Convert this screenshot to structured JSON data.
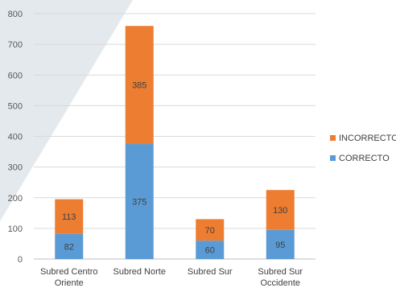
{
  "chart_data": {
    "type": "bar",
    "stacked": true,
    "categories": [
      [
        "Subred Centro",
        "Oriente"
      ],
      [
        "Subred Norte"
      ],
      [
        "Subred Sur"
      ],
      [
        "Subred Sur",
        "Occidente"
      ]
    ],
    "series": [
      {
        "name": "CORRECTO",
        "color": "#5b9bd5",
        "values": [
          82,
          375,
          60,
          95
        ]
      },
      {
        "name": "INCORRECTO",
        "color": "#ed7d31",
        "values": [
          113,
          385,
          70,
          130
        ]
      }
    ],
    "ylim": [
      0,
      800
    ],
    "yticks": [
      0,
      100,
      200,
      300,
      400,
      500,
      600,
      700,
      800
    ],
    "grid": true,
    "legend": {
      "position": "right",
      "entries": [
        "INCORRECTO",
        "CORRECTO"
      ]
    },
    "title": "",
    "xlabel": "",
    "ylabel": "",
    "background_accent": "#e3e9ec"
  }
}
